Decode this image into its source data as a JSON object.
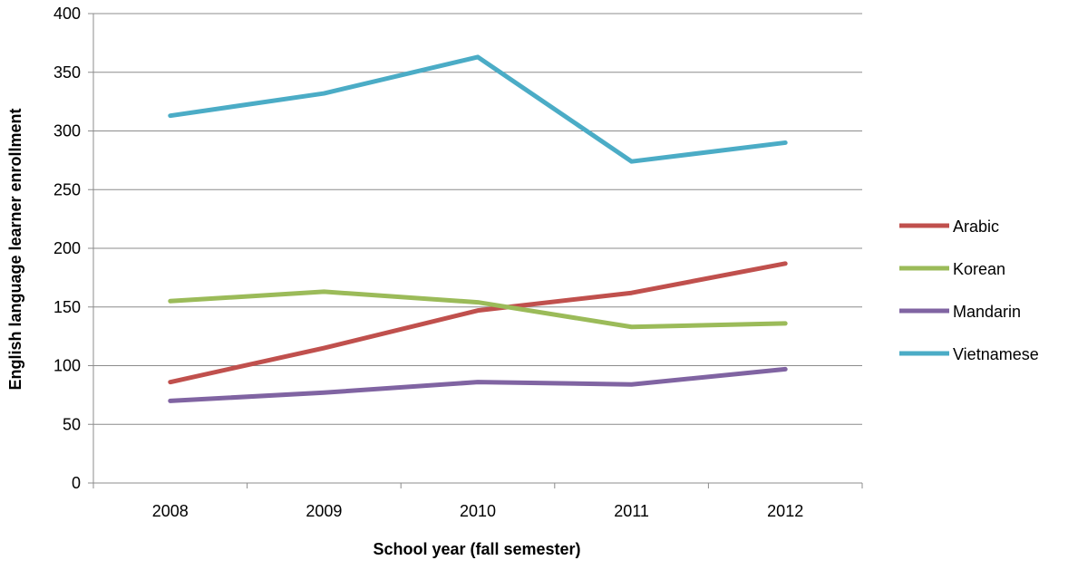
{
  "chart_data": {
    "type": "line",
    "title": "",
    "xlabel": "School year (fall semester)",
    "ylabel": "English language learner enrollment",
    "categories": [
      "2008",
      "2009",
      "2010",
      "2011",
      "2012"
    ],
    "ylim": [
      0,
      400
    ],
    "yticks": [
      0,
      50,
      100,
      150,
      200,
      250,
      300,
      350,
      400
    ],
    "ytick_labels": [
      "0",
      "50",
      "100",
      "150",
      "200",
      "250",
      "300",
      "350",
      "400"
    ],
    "grid": "horizontal",
    "legend_position": "right",
    "series": [
      {
        "name": "Arabic",
        "color": "#c0504d",
        "values": [
          86,
          115,
          147,
          162,
          187
        ]
      },
      {
        "name": "Korean",
        "color": "#9bbb59",
        "values": [
          155,
          163,
          154,
          133,
          136
        ]
      },
      {
        "name": "Mandarin",
        "color": "#8064a2",
        "values": [
          70,
          77,
          86,
          84,
          97
        ]
      },
      {
        "name": "Vietnamese",
        "color": "#4bacc6",
        "values": [
          313,
          332,
          363,
          274,
          290
        ]
      }
    ]
  }
}
